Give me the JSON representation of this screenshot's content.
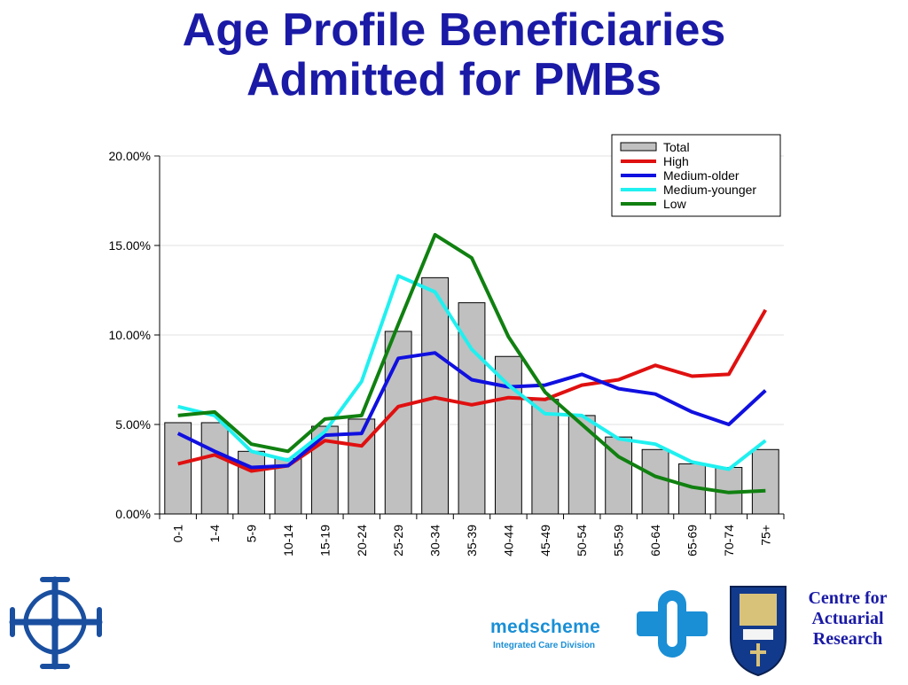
{
  "page": {
    "title_line1": "Age Profile Beneficiaries",
    "title_line2": "Admitted for PMBs"
  },
  "colors": {
    "title": "#1a1aa6",
    "bar_fill": "#c0c0c0",
    "high": "#e01010",
    "medium_older": "#1010e0",
    "medium_younger": "#20f0f0",
    "low": "#108010",
    "logo_blue": "#1a4fa0",
    "medscheme_blue": "#1a8fd6"
  },
  "logos": {
    "medscheme_name": "medscheme",
    "medscheme_tagline": "Integrated Care Division",
    "cfar_line1": "Centre for",
    "cfar_line2": "Actuarial",
    "cfar_line3": "Research"
  },
  "chart_data": {
    "type": "bar",
    "categories": [
      "0-1",
      "1-4",
      "5-9",
      "10-14",
      "15-19",
      "20-24",
      "25-29",
      "30-34",
      "35-39",
      "40-44",
      "45-49",
      "50-54",
      "55-59",
      "60-64",
      "65-69",
      "70-74",
      "75+"
    ],
    "ylim": [
      0,
      20
    ],
    "yticks": [
      0,
      5,
      10,
      15,
      20
    ],
    "ytick_labels": [
      "0.00%",
      "5.00%",
      "10.00%",
      "15.00%",
      "20.00%"
    ],
    "legend_position": "top-right",
    "series": [
      {
        "name": "Total",
        "kind": "bar",
        "color": "#c0c0c0",
        "values": [
          5.1,
          5.1,
          3.5,
          3.1,
          4.9,
          5.3,
          10.2,
          13.2,
          11.8,
          8.8,
          6.4,
          5.5,
          4.3,
          3.6,
          2.8,
          2.6,
          3.6
        ]
      },
      {
        "name": "High",
        "kind": "line",
        "color": "#e01010",
        "values": [
          2.8,
          3.3,
          2.4,
          2.7,
          4.1,
          3.8,
          6.0,
          6.5,
          6.1,
          6.5,
          6.4,
          7.2,
          7.5,
          8.3,
          7.7,
          7.8,
          11.4
        ]
      },
      {
        "name": "Medium-older",
        "kind": "line",
        "color": "#1010e0",
        "values": [
          4.5,
          3.5,
          2.6,
          2.7,
          4.4,
          4.5,
          8.7,
          9.0,
          7.5,
          7.1,
          7.2,
          7.8,
          7.0,
          6.7,
          5.7,
          5.0,
          6.9
        ]
      },
      {
        "name": "Medium-younger",
        "kind": "line",
        "color": "#20f0f0",
        "values": [
          6.0,
          5.5,
          3.5,
          3.0,
          4.6,
          7.4,
          13.3,
          12.4,
          9.2,
          7.2,
          5.6,
          5.5,
          4.2,
          3.9,
          2.9,
          2.5,
          4.1
        ]
      },
      {
        "name": "Low",
        "kind": "line",
        "color": "#108010",
        "values": [
          5.5,
          5.7,
          3.9,
          3.5,
          5.3,
          5.5,
          10.6,
          15.6,
          14.3,
          9.9,
          6.8,
          5.0,
          3.2,
          2.1,
          1.5,
          1.2,
          1.3
        ]
      }
    ]
  }
}
